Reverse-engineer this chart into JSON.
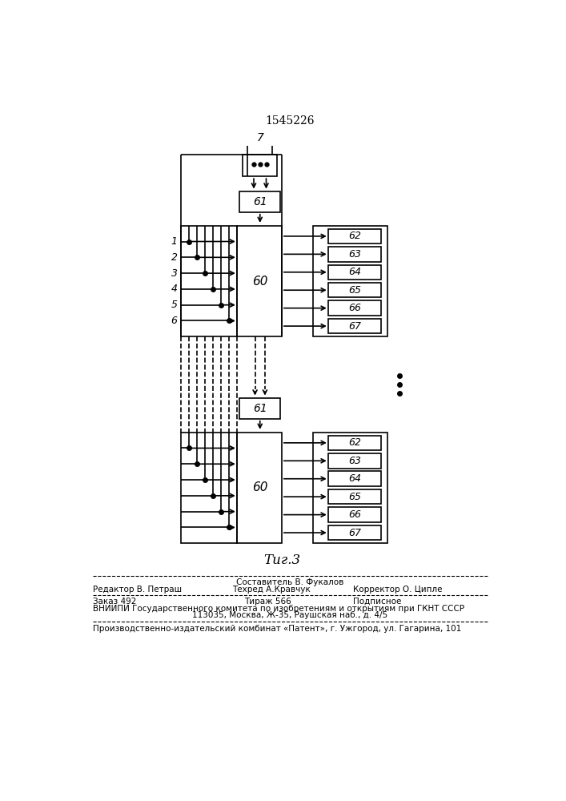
{
  "title": "1545226",
  "fig_label": "Τиг.3",
  "background_color": "#ffffff",
  "line_color": "#000000",
  "block62_labels": [
    "62",
    "63",
    "64",
    "65",
    "66",
    "67"
  ],
  "input_labels": [
    "1",
    "2",
    "3",
    "4",
    "5",
    "6"
  ],
  "footer": {
    "line1_center": "Составитель В. Фукалов",
    "line2_left": "Редактор В. Петраш",
    "line2_center": "Техред А.Кравчук",
    "line2_right": "Корректор О. Ципле",
    "line3_left": "Заказ 492",
    "line3_center": "Тираж 566",
    "line3_right": "Подписное",
    "line4": "ВНИИПИ Государственного комитета по изобретениям и открытиям при ГКНТ СССР",
    "line5": "113035, Москва, Ж-35, Раушская наб., д. 4/5",
    "line6": "Производственно-издательский комбинат «Патент», г. Ужгород, ул. Гагарина, 101"
  }
}
